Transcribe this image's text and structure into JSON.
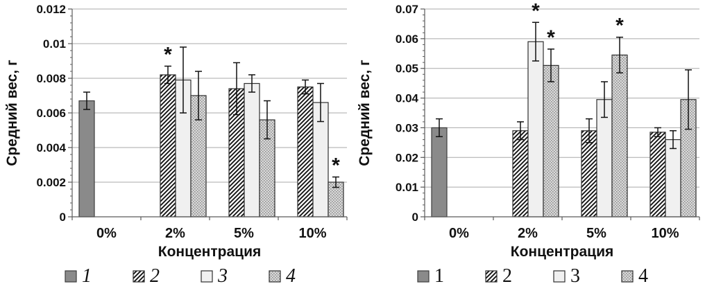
{
  "figure": {
    "background": "#ffffff",
    "significance_marker": "*"
  },
  "colors": {
    "bar_solid": "#8a8a8a",
    "bar_solid_border": "#3d3d3d",
    "bar_light": "#f0f0f0",
    "hatch_bg": "#ffffff",
    "hatch_line": "#151515",
    "dots_bg": "#d9d9d9",
    "dots_dot": "#8d8d8d",
    "bar_border": "#2e2e2e",
    "grid": "#a9a9a9",
    "axis": "#5b5b5b",
    "error_bar": "#111111",
    "text": "#111111"
  },
  "chart_data": [
    {
      "type": "bar",
      "title": "",
      "ylabel": "Средний вес, г",
      "xlabel": "Концентрация",
      "categories": [
        "0%",
        "2%",
        "5%",
        "10%"
      ],
      "ylim": [
        0,
        0.012
      ],
      "ytick_step": 0.002,
      "ytick_labels": [
        "0",
        "0.002",
        "0.004",
        "0.006",
        "0.008",
        "0.01",
        "0.012"
      ],
      "grid": true,
      "legend_position": "bottom",
      "legend_italic": true,
      "series": [
        {
          "name": "1",
          "style": "solid-gray",
          "values": [
            0.0067,
            null,
            null,
            null
          ],
          "errors": [
            0.0005,
            null,
            null,
            null
          ],
          "significant": [
            false,
            false,
            false,
            false
          ]
        },
        {
          "name": "2",
          "style": "diagonal-hatch",
          "values": [
            null,
            0.0082,
            0.0074,
            0.0075
          ],
          "errors": [
            null,
            0.0005,
            0.0015,
            0.0004
          ],
          "significant": [
            false,
            true,
            false,
            false
          ]
        },
        {
          "name": "3",
          "style": "light-solid",
          "values": [
            null,
            0.0079,
            0.0077,
            0.0066
          ],
          "errors": [
            null,
            0.0019,
            0.0005,
            0.0011
          ],
          "significant": [
            false,
            false,
            false,
            false
          ]
        },
        {
          "name": "4",
          "style": "dotted-gray",
          "values": [
            null,
            0.007,
            0.0056,
            0.002
          ],
          "errors": [
            null,
            0.0014,
            0.0011,
            0.0003
          ],
          "significant": [
            false,
            false,
            false,
            true
          ]
        }
      ]
    },
    {
      "type": "bar",
      "title": "",
      "ylabel": "Средний вес, г",
      "xlabel": "Концентрация",
      "categories": [
        "0%",
        "2%",
        "5%",
        "10%"
      ],
      "ylim": [
        0,
        0.07
      ],
      "ytick_step": 0.01,
      "ytick_labels": [
        "0",
        "0.01",
        "0.02",
        "0.03",
        "0.04",
        "0.05",
        "0.06",
        "0.07"
      ],
      "grid": true,
      "legend_position": "bottom",
      "legend_italic": false,
      "series": [
        {
          "name": "1",
          "style": "solid-gray",
          "values": [
            0.03,
            null,
            null,
            null
          ],
          "errors": [
            0.003,
            null,
            null,
            null
          ],
          "significant": [
            false,
            false,
            false,
            false
          ]
        },
        {
          "name": "2",
          "style": "diagonal-hatch",
          "values": [
            null,
            0.029,
            0.029,
            0.0285
          ],
          "errors": [
            null,
            0.003,
            0.004,
            0.0015
          ],
          "significant": [
            false,
            false,
            false,
            false
          ]
        },
        {
          "name": "3",
          "style": "light-solid",
          "values": [
            null,
            0.059,
            0.0395,
            0.026
          ],
          "errors": [
            null,
            0.0065,
            0.006,
            0.003
          ],
          "significant": [
            false,
            true,
            false,
            false
          ]
        },
        {
          "name": "4",
          "style": "dotted-gray",
          "values": [
            null,
            0.051,
            0.0545,
            0.0395
          ],
          "errors": [
            null,
            0.0055,
            0.006,
            0.01
          ],
          "significant": [
            false,
            true,
            true,
            false
          ]
        }
      ]
    }
  ]
}
